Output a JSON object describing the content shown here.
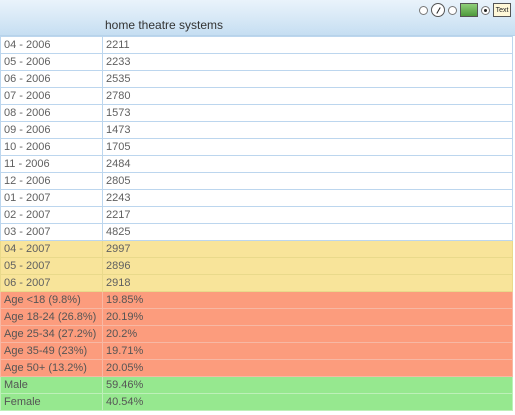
{
  "header": {
    "column_title": "home theatre systems",
    "view_options": [
      {
        "icon": "gauge-icon",
        "selected": false
      },
      {
        "icon": "image-icon",
        "selected": false
      },
      {
        "icon": "text-icon",
        "label": "Text",
        "selected": true
      }
    ]
  },
  "rows": [
    {
      "label": "04 - 2006",
      "value": "2211",
      "group": "white"
    },
    {
      "label": "05 - 2006",
      "value": "2233",
      "group": "white"
    },
    {
      "label": "06 - 2006",
      "value": "2535",
      "group": "white"
    },
    {
      "label": "07 - 2006",
      "value": "2780",
      "group": "white"
    },
    {
      "label": "08 - 2006",
      "value": "1573",
      "group": "white"
    },
    {
      "label": "09 - 2006",
      "value": "1473",
      "group": "white"
    },
    {
      "label": "10 - 2006",
      "value": "1705",
      "group": "white"
    },
    {
      "label": "11 - 2006",
      "value": "2484",
      "group": "white"
    },
    {
      "label": "12 - 2006",
      "value": "2805",
      "group": "white"
    },
    {
      "label": "01 - 2007",
      "value": "2243",
      "group": "white"
    },
    {
      "label": "02 - 2007",
      "value": "2217",
      "group": "white"
    },
    {
      "label": "03 - 2007",
      "value": "4825",
      "group": "white"
    },
    {
      "label": "04 - 2007",
      "value": "2997",
      "group": "yellow"
    },
    {
      "label": "05 - 2007",
      "value": "2896",
      "group": "yellow"
    },
    {
      "label": "06 - 2007",
      "value": "2918",
      "group": "yellow"
    },
    {
      "label": "Age <18 (9.8%)",
      "value": "19.85%",
      "group": "salmon"
    },
    {
      "label": "Age 18-24 (26.8%)",
      "value": "20.19%",
      "group": "salmon"
    },
    {
      "label": "Age 25-34 (27.2%)",
      "value": "20.2%",
      "group": "salmon"
    },
    {
      "label": "Age 35-49 (23%)",
      "value": "19.71%",
      "group": "salmon"
    },
    {
      "label": "Age 50+ (13.2%)",
      "value": "20.05%",
      "group": "salmon"
    },
    {
      "label": "Male",
      "value": "59.46%",
      "group": "green"
    },
    {
      "label": "Female",
      "value": "40.54%",
      "group": "green"
    }
  ],
  "colors": {
    "header_bg": "#d6e8f6",
    "grid_border": "#bcd6ee",
    "forecast_yellow": "#f8e49a",
    "age_salmon": "#fc9c7d",
    "gender_green": "#96e88f"
  }
}
